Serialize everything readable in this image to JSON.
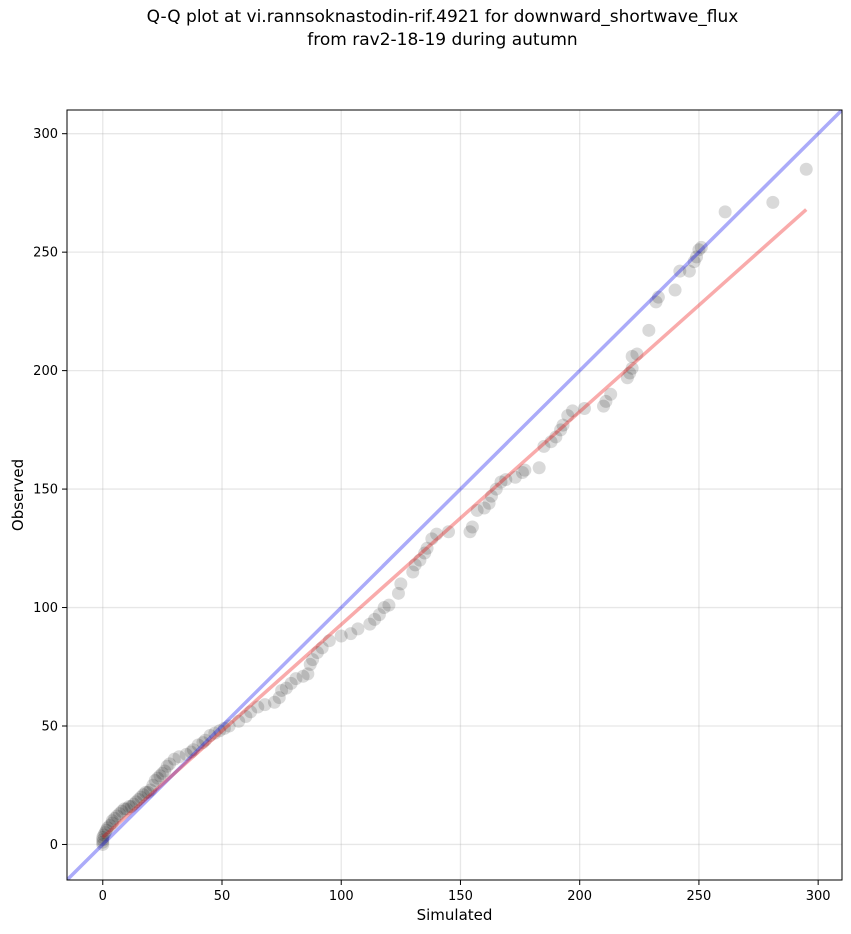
{
  "chart_data": {
    "type": "scatter",
    "title_lines": [
      "Q-Q plot at vi.rannsoknastodin-rif.4921 for downward_shortwave_flux",
      "from rav2-18-19 during autumn"
    ],
    "xlabel": "Simulated",
    "ylabel": "Observed",
    "xlim": [
      -15,
      310
    ],
    "ylim": [
      -15,
      310
    ],
    "xticks": [
      0,
      50,
      100,
      150,
      200,
      250,
      300
    ],
    "yticks": [
      0,
      50,
      100,
      150,
      200,
      250,
      300
    ],
    "grid": true,
    "reference_line": {
      "slope": 1,
      "intercept": 0,
      "color": "#0000ee",
      "opacity": 0.33
    },
    "fit_line": {
      "x0": 0,
      "y0": 3,
      "x1": 295,
      "y1": 268,
      "color": "#ee0000",
      "opacity": 0.33
    },
    "point_color": "#000000",
    "point_opacity": 0.15,
    "points": [
      [
        0,
        0
      ],
      [
        0,
        1
      ],
      [
        0,
        2
      ],
      [
        0,
        3
      ],
      [
        0.5,
        4
      ],
      [
        1,
        5
      ],
      [
        1.5,
        6
      ],
      [
        2,
        7
      ],
      [
        3,
        8
      ],
      [
        4,
        9
      ],
      [
        4,
        10
      ],
      [
        5,
        11
      ],
      [
        6,
        12
      ],
      [
        7,
        13
      ],
      [
        8,
        14
      ],
      [
        9,
        15
      ],
      [
        10,
        15
      ],
      [
        11,
        16
      ],
      [
        12,
        16
      ],
      [
        13,
        17
      ],
      [
        14,
        18
      ],
      [
        15,
        19
      ],
      [
        16,
        20
      ],
      [
        17,
        21
      ],
      [
        18,
        22
      ],
      [
        19,
        22
      ],
      [
        20,
        23
      ],
      [
        21,
        25
      ],
      [
        22,
        27
      ],
      [
        23,
        28
      ],
      [
        24,
        29
      ],
      [
        25,
        30
      ],
      [
        26,
        31
      ],
      [
        27,
        33
      ],
      [
        28,
        34
      ],
      [
        30,
        36
      ],
      [
        32,
        37
      ],
      [
        35,
        38
      ],
      [
        37,
        39
      ],
      [
        38,
        40
      ],
      [
        40,
        42
      ],
      [
        42,
        43
      ],
      [
        43,
        44
      ],
      [
        45,
        46
      ],
      [
        47,
        47
      ],
      [
        49,
        48
      ],
      [
        51,
        49
      ],
      [
        53,
        50
      ],
      [
        57,
        52
      ],
      [
        60,
        54
      ],
      [
        62,
        56
      ],
      [
        65,
        58
      ],
      [
        68,
        59
      ],
      [
        72,
        60
      ],
      [
        74,
        62
      ],
      [
        75,
        65
      ],
      [
        77,
        66
      ],
      [
        79,
        68
      ],
      [
        81,
        70
      ],
      [
        84,
        71
      ],
      [
        86,
        72
      ],
      [
        87,
        76
      ],
      [
        88,
        78
      ],
      [
        90,
        81
      ],
      [
        92,
        83
      ],
      [
        95,
        86
      ],
      [
        100,
        88
      ],
      [
        104,
        89
      ],
      [
        107,
        91
      ],
      [
        112,
        93
      ],
      [
        114,
        95
      ],
      [
        116,
        97
      ],
      [
        118,
        100
      ],
      [
        120,
        101
      ],
      [
        124,
        106
      ],
      [
        125,
        110
      ],
      [
        130,
        115
      ],
      [
        131,
        118
      ],
      [
        133,
        120
      ],
      [
        135,
        123
      ],
      [
        136,
        125
      ],
      [
        138,
        129
      ],
      [
        140,
        131
      ],
      [
        145,
        132
      ],
      [
        154,
        132
      ],
      [
        155,
        134
      ],
      [
        157,
        141
      ],
      [
        160,
        142
      ],
      [
        162,
        144
      ],
      [
        163,
        147
      ],
      [
        165,
        150
      ],
      [
        167,
        153
      ],
      [
        169,
        154
      ],
      [
        173,
        155
      ],
      [
        176,
        157
      ],
      [
        177,
        158
      ],
      [
        183,
        159
      ],
      [
        185,
        168
      ],
      [
        188,
        170
      ],
      [
        190,
        172
      ],
      [
        192,
        175
      ],
      [
        193,
        177
      ],
      [
        195,
        181
      ],
      [
        197,
        183
      ],
      [
        202,
        184
      ],
      [
        210,
        185
      ],
      [
        211,
        187
      ],
      [
        213,
        190
      ],
      [
        220,
        197
      ],
      [
        221,
        199
      ],
      [
        222,
        201
      ],
      [
        222,
        206
      ],
      [
        224,
        207
      ],
      [
        229,
        217
      ],
      [
        232,
        229
      ],
      [
        233,
        231
      ],
      [
        240,
        234
      ],
      [
        242,
        242
      ],
      [
        246,
        242
      ],
      [
        248,
        246
      ],
      [
        249,
        248
      ],
      [
        250,
        251
      ],
      [
        251,
        252
      ],
      [
        261,
        267
      ],
      [
        281,
        271
      ],
      [
        295,
        285
      ]
    ]
  }
}
